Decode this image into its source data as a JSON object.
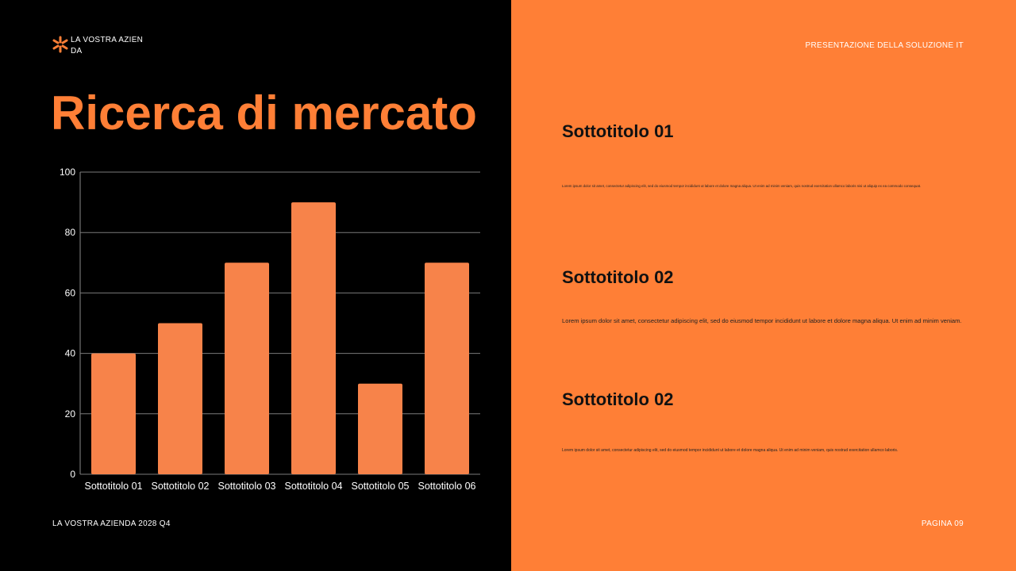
{
  "company": {
    "logo_text": "LA VOSTRA AZIENDA",
    "icon": "asterisk-logo-icon"
  },
  "slide": {
    "title": "Ricerca di mercato"
  },
  "header_right": {
    "text": "PRESENTAZIONE DELLA SOLUZIONE IT"
  },
  "footer": {
    "left": "LA VOSTRA AZIENDA 2028 Q4",
    "right": "PAGINA 09"
  },
  "sections": [
    {
      "subtitle": "Sottotitolo 01",
      "text": "Lorem ipsum dolor sit amet, consectetur adipiscing elit, sed do eiusmod tempor incididunt ut labore et dolore magna aliqua. Ut enim ad minim veniam, quis nostrud exercitation ullamco laboris nisi ut aliquip ex ea commodo consequat."
    },
    {
      "subtitle": "Sottotitolo 02",
      "text": "Lorem ipsum dolor sit amet, consectetur adipiscing elit, sed do eiusmod tempor incididunt ut labore et dolore magna aliqua. Ut enim ad minim veniam."
    },
    {
      "subtitle": "Sottotitolo 02",
      "text": "Lorem ipsum dolor sit amet, consectetur adipiscing elit, sed do eiusmod tempor incididunt ut labore et dolore magna aliqua. Ut enim ad minim veniam, quis nostrud exercitation ullamco laboris."
    }
  ],
  "colors": {
    "accent": "#FF7F36",
    "bar": "#F7834A",
    "left_bg": "#000000",
    "right_bg": "#FF7F36"
  },
  "chart_data": {
    "type": "bar",
    "categories": [
      "Sottotitolo 01",
      "Sottotitolo 02",
      "Sottotitolo 03",
      "Sottotitolo 04",
      "Sottotitolo 05",
      "Sottotitolo 06"
    ],
    "values": [
      40,
      50,
      70,
      90,
      30,
      70
    ],
    "yticks": [
      "0",
      "20",
      "40",
      "60",
      "80",
      "100"
    ],
    "ylim": [
      0,
      100
    ],
    "grid": true,
    "title": "",
    "xlabel": "",
    "ylabel": ""
  }
}
